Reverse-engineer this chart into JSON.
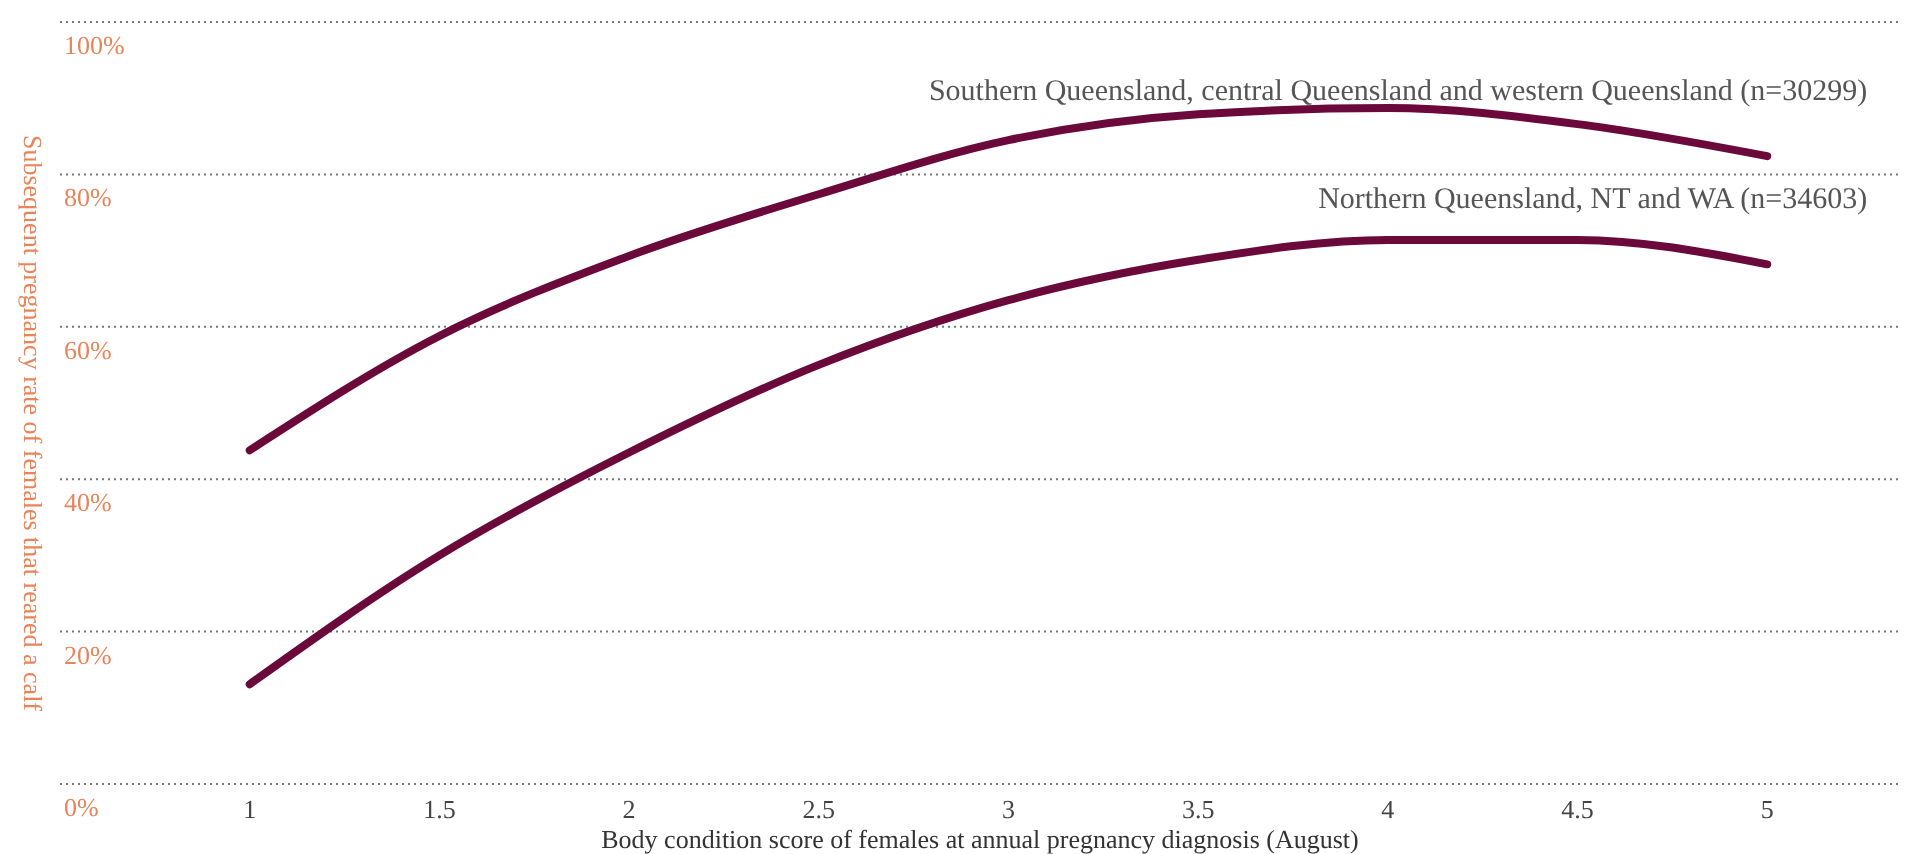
{
  "chart_data": {
    "type": "line",
    "xlabel": "Body condition score of females at annual pregnancy diagnosis (August)",
    "ylabel": "Subsequent pregnancy rate of females that reared a calf",
    "x": [
      1,
      1.5,
      2,
      2.5,
      3,
      3.5,
      4,
      4.5,
      5
    ],
    "series": [
      {
        "name": "Southern Queensland, central Queensland and western Queensland (n=30299)",
        "color": "#6b0a3a",
        "values": [
          43.8,
          58.8,
          69.3,
          77.4,
          84.5,
          87.9,
          88.7,
          86.6,
          82.4
        ]
      },
      {
        "name": "Northern Queensland, NT and WA (n=34603)",
        "color": "#6b0a3a",
        "values": [
          13.1,
          30,
          43.5,
          55,
          63.5,
          68.8,
          71.4,
          71.4,
          68.2
        ]
      }
    ],
    "xlim": [
      0.5,
      5.35
    ],
    "ylim": [
      0,
      100
    ],
    "xticks": [
      1,
      1.5,
      2,
      2.5,
      3,
      3.5,
      4,
      4.5,
      5
    ],
    "yticks": [
      {
        "value": 0,
        "label": "0%"
      },
      {
        "value": 20,
        "label": "20%"
      },
      {
        "value": 40,
        "label": "40%"
      },
      {
        "value": 60,
        "label": "60%"
      },
      {
        "value": 80,
        "label": "80%"
      },
      {
        "value": 100,
        "label": "100%"
      }
    ],
    "grid": "y",
    "marker": "none",
    "line_style": "solid",
    "legend": false
  }
}
